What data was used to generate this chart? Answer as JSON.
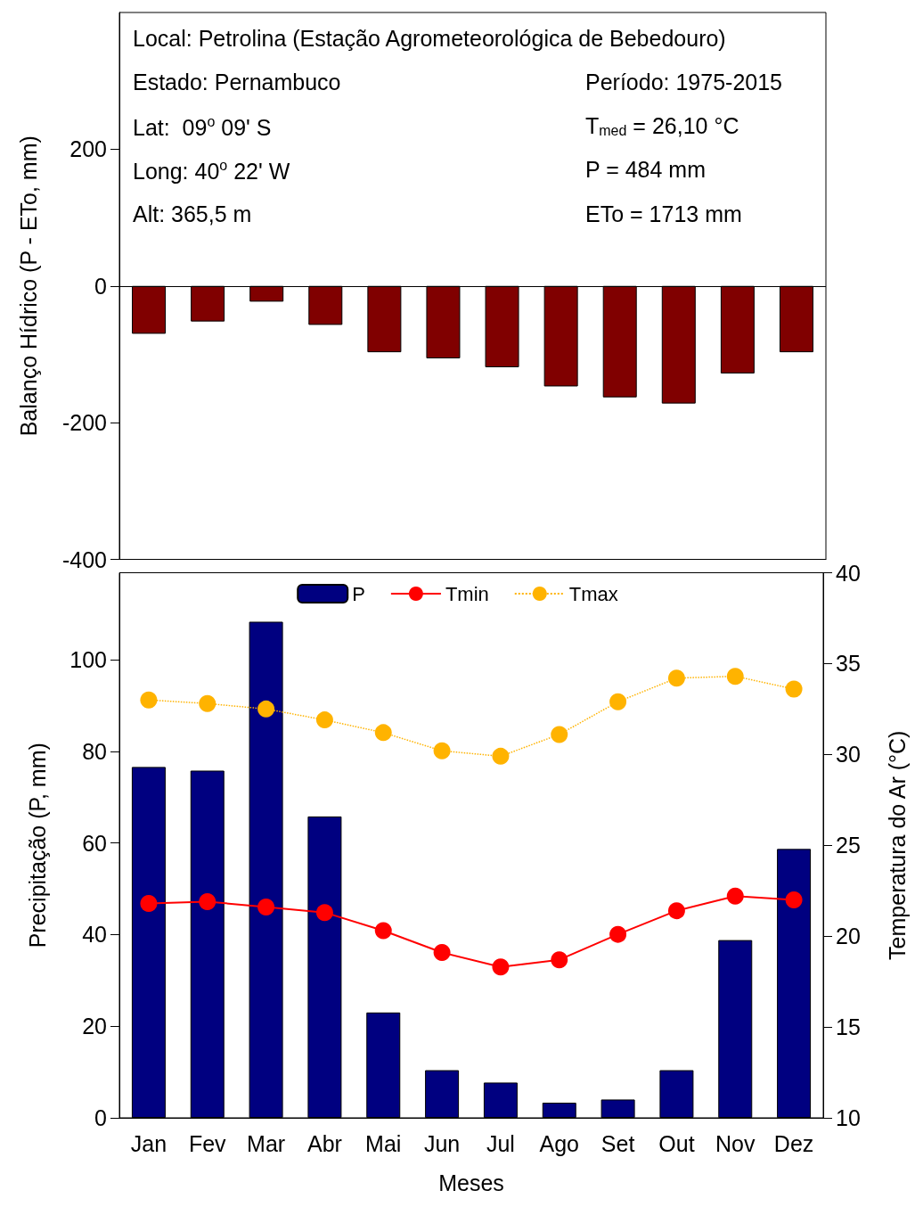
{
  "chart_data": [
    {
      "type": "bar",
      "ylabel": "Balanço Hídrico (P - ETo, mm)",
      "categories": [
        null,
        null,
        null,
        null,
        null,
        null,
        null,
        null,
        null,
        null,
        null,
        null
      ],
      "series": [
        {
          "color": "#800000",
          "values": [
            -70,
            -52,
            -23,
            -57,
            -97,
            -106,
            -119,
            -147,
            -163,
            -172,
            -128,
            -97
          ]
        }
      ],
      "ylim": [
        -400,
        400
      ],
      "yticks": [
        -400,
        -200,
        0,
        200
      ],
      "tick_labels": "y",
      "legend": false,
      "ref_lines": [
        {
          "axis": "y",
          "value": 0,
          "color": "#000000"
        }
      ],
      "annotations": [
        "Local: Petrolina (Estação Agrometeorológica de Bebedouro)",
        "Estado: Pernambuco",
        "Período: 1975-2015",
        "Lat:  09$^{o}$ 09' S",
        "T$_{med}$ = 26,10 °C",
        "Long: 40$^{o}$ 22' W",
        "P = 484 mm",
        "Alt: 365,5 m",
        "ETo = 1713 mm"
      ]
    },
    {
      "type": "bar",
      "xlabel": "Meses",
      "ylabel": "Precipitação (P, mm)",
      "y2label": "Temperatura do Ar (°C)",
      "categories": [
        "Jan",
        "Fev",
        "Mar",
        "Abr",
        "Mai",
        "Jun",
        "Jul",
        "Ago",
        "Set",
        "Out",
        "Nov",
        "Dez"
      ],
      "series": [
        {
          "name": "P",
          "type": "bar",
          "color": "#000080",
          "values": [
            76.6,
            75.8,
            108.3,
            65.8,
            23,
            10.4,
            7.7,
            3.3,
            4.0,
            10.4,
            38.8,
            58.7
          ]
        },
        {
          "name": "Tmin",
          "type": "line",
          "axis": "y2",
          "color": "#ff0000",
          "marker": "circle",
          "line_style": "solid",
          "values": [
            21.8,
            21.9,
            21.6,
            21.3,
            20.3,
            19.1,
            18.3,
            18.7,
            20.1,
            21.4,
            22.2,
            22.0
          ]
        },
        {
          "name": "Tmax",
          "type": "line",
          "axis": "y2",
          "color": "#ffb300",
          "marker": "circle",
          "line_style": "dotted",
          "values": [
            33.0,
            32.8,
            32.5,
            31.9,
            31.2,
            30.2,
            29.9,
            31.1,
            32.9,
            34.2,
            34.3,
            33.6
          ]
        }
      ],
      "ylim": [
        0,
        119
      ],
      "yticks": [
        0,
        20,
        40,
        60,
        80,
        100
      ],
      "y2lim": [
        10,
        40
      ],
      "y2ticks": [
        10,
        15,
        20,
        25,
        30,
        35,
        40
      ],
      "grid": false,
      "legend": "top"
    }
  ]
}
